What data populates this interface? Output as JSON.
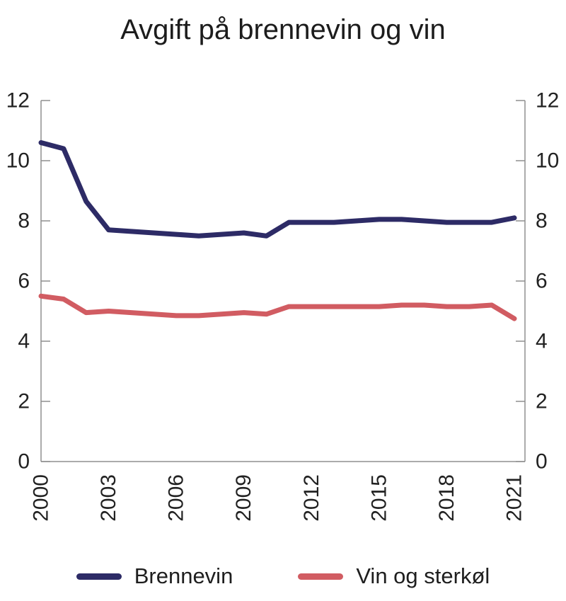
{
  "chart_data": {
    "type": "line",
    "title": "Avgift på brennevin og vin",
    "x": [
      2000,
      2001,
      2002,
      2003,
      2004,
      2005,
      2006,
      2007,
      2008,
      2009,
      2010,
      2011,
      2012,
      2013,
      2014,
      2015,
      2016,
      2017,
      2018,
      2019,
      2020,
      2021
    ],
    "series": [
      {
        "name": "Brennevin",
        "color": "#2d2b66",
        "values": [
          10.6,
          10.4,
          8.65,
          7.7,
          7.65,
          7.6,
          7.55,
          7.5,
          7.55,
          7.6,
          7.5,
          7.95,
          7.95,
          7.95,
          8.0,
          8.05,
          8.05,
          8.0,
          7.95,
          7.95,
          7.95,
          8.1
        ]
      },
      {
        "name": "Vin og sterkøl",
        "color": "#d15c62",
        "values": [
          5.5,
          5.4,
          4.95,
          5.0,
          4.95,
          4.9,
          4.85,
          4.85,
          4.9,
          4.95,
          4.9,
          5.15,
          5.15,
          5.15,
          5.15,
          5.15,
          5.2,
          5.2,
          5.15,
          5.15,
          5.2,
          4.75
        ]
      }
    ],
    "ylim": [
      0,
      12
    ],
    "yticks": [
      0,
      2,
      4,
      6,
      8,
      10,
      12
    ],
    "xticks": [
      2000,
      2003,
      2006,
      2009,
      2012,
      2015,
      2018,
      2021
    ],
    "y_axis_sides": "both",
    "grid": false,
    "legend_position": "bottom",
    "axis_color": "#8f8f8f",
    "text_color": "#222222",
    "line_width": 7
  }
}
